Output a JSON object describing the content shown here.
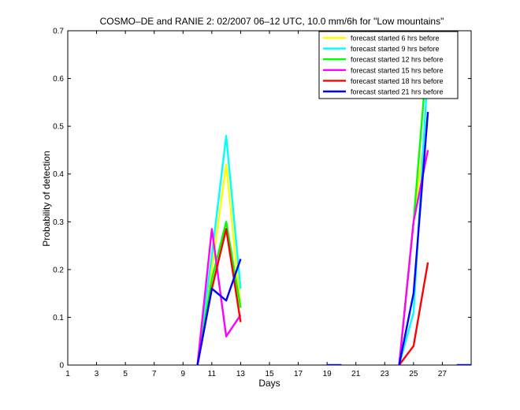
{
  "chart_data": {
    "type": "line",
    "title": "COSMO–DE and RANIE 2: 02/2007 06–12 UTC, 10.0 mm/6h for \"Low mountains\"",
    "xlabel": "Days",
    "ylabel": "Probability of detection",
    "xlim": [
      1,
      29
    ],
    "ylim": [
      0,
      0.7
    ],
    "xticks": [
      1,
      3,
      5,
      7,
      9,
      11,
      13,
      15,
      17,
      19,
      21,
      23,
      25,
      27
    ],
    "yticks": [
      0,
      0.1,
      0.2,
      0.3,
      0.4,
      0.5,
      0.6,
      0.7
    ],
    "ytick_labels": [
      "0",
      "0.1",
      "0.2",
      "0.3",
      "0.4",
      "0.5",
      "0.6",
      "0.7"
    ],
    "grid": false,
    "legend_position": "top-right",
    "series": [
      {
        "name": "forecast started 6 hrs before",
        "color": "#ffff00",
        "segments": [
          [
            [
              10,
              0
            ],
            [
              11,
              0.2
            ],
            [
              12,
              0.42
            ],
            [
              13,
              0.12
            ]
          ],
          [
            [
              24,
              0
            ],
            [
              25,
              0.3
            ],
            [
              26,
              0.53
            ]
          ]
        ]
      },
      {
        "name": "forecast started 9 hrs before",
        "color": "#00ffff",
        "segments": [
          [
            [
              10,
              0
            ],
            [
              11,
              0.23
            ],
            [
              12,
              0.48
            ],
            [
              13,
              0.16
            ]
          ],
          [
            [
              24,
              0
            ],
            [
              25,
              0.11
            ],
            [
              26,
              0.62
            ]
          ]
        ]
      },
      {
        "name": "forecast started 12 hrs before",
        "color": "#00ff00",
        "segments": [
          [
            [
              10,
              0
            ],
            [
              11,
              0.18
            ],
            [
              12,
              0.3
            ],
            [
              13,
              0.12
            ]
          ],
          [
            [
              24,
              0
            ],
            [
              25,
              0.3
            ],
            [
              26,
              0.665
            ]
          ]
        ]
      },
      {
        "name": "forecast started 15 hrs before",
        "color": "#ff00ff",
        "segments": [
          [
            [
              10,
              0
            ],
            [
              11,
              0.285
            ],
            [
              12,
              0.06
            ],
            [
              13,
              0.105
            ]
          ],
          [
            [
              24,
              0
            ],
            [
              25,
              0.3
            ],
            [
              26,
              0.45
            ]
          ]
        ]
      },
      {
        "name": "forecast started 18 hrs before",
        "color": "#ff0000",
        "segments": [
          [
            [
              10,
              0
            ],
            [
              11,
              0.16
            ],
            [
              12,
              0.285
            ],
            [
              13,
              0.09
            ]
          ],
          [
            [
              24,
              0
            ],
            [
              25,
              0.04
            ],
            [
              26,
              0.215
            ]
          ]
        ]
      },
      {
        "name": "forecast started 21 hrs before",
        "color": "#0000ff",
        "segments": [
          [
            [
              10,
              0
            ],
            [
              11,
              0.16
            ],
            [
              12,
              0.135
            ],
            [
              13,
              0.222
            ]
          ],
          [
            [
              24,
              0
            ],
            [
              25,
              0.15
            ],
            [
              26,
              0.53
            ]
          ],
          [
            [
              19,
              0
            ],
            [
              20,
              0
            ]
          ],
          [
            [
              28,
              0
            ],
            [
              31,
              0
            ]
          ]
        ]
      }
    ]
  }
}
